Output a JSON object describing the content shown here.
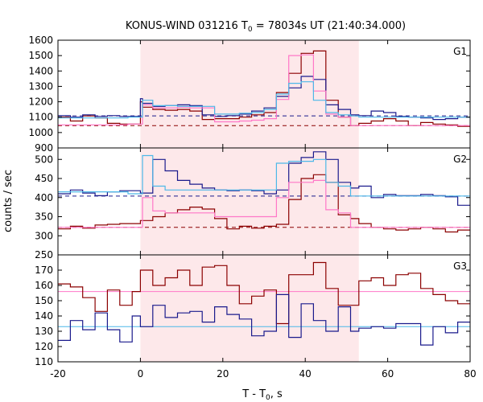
{
  "chart_data": {
    "type": "line",
    "title": "KONUS-WIND 031216 T",
    "title_sub": "0",
    "title_rest": " = 78034s UT (21:40:34.000)",
    "xlabel": "T - T",
    "xlabel_sub": "0",
    "xlabel_rest": ", s",
    "ylabel": "counts / sec",
    "xlim": [
      -20,
      80
    ],
    "x_ticks": [
      -20,
      0,
      20,
      40,
      60,
      80
    ],
    "highlight_interval": [
      0,
      53
    ],
    "colors": {
      "highlight": "#fde8ea",
      "dark_red": "#8b0000",
      "dark_blue": "#1a1a8c",
      "pink": "#ff77c8",
      "cyan": "#4db8e8"
    },
    "panels": [
      {
        "name": "G1",
        "ylim": [
          900,
          1600
        ],
        "y_ticks": [
          900,
          1000,
          1100,
          1200,
          1300,
          1400,
          1500,
          1600
        ],
        "background_levels": [
          {
            "color": "dark_blue",
            "value": 1108
          },
          {
            "color": "dark_red",
            "value": 1045
          }
        ],
        "steps": [
          {
            "color": "dark_red",
            "bin_edges": [
              -20,
              -17,
              -14,
              -11,
              -8,
              -5,
              0,
              0.5,
              3,
              6,
              9,
              12,
              15,
              18,
              21,
              24,
              27,
              30,
              33,
              36,
              39,
              42,
              45,
              48,
              51,
              53,
              56,
              59,
              62,
              65,
              68,
              71,
              74,
              77,
              80
            ],
            "values": [
              1100,
              1075,
              1108,
              1095,
              1060,
              1055,
              1200,
              1165,
              1150,
              1145,
              1150,
              1140,
              1085,
              1090,
              1090,
              1100,
              1115,
              1130,
              1260,
              1385,
              1515,
              1530,
              1210,
              1100,
              1045,
              1060,
              1075,
              1090,
              1075,
              1045,
              1065,
              1055,
              1050,
              1040
            ]
          },
          {
            "color": "dark_blue",
            "bin_edges": [
              -20,
              -17,
              -14,
              -11,
              -8,
              -5,
              0,
              0.5,
              3,
              6,
              9,
              12,
              15,
              18,
              21,
              24,
              27,
              30,
              33,
              36,
              39,
              42,
              45,
              48,
              51,
              53,
              56,
              59,
              62,
              65,
              68,
              71,
              74,
              77,
              80
            ],
            "values": [
              1110,
              1100,
              1115,
              1105,
              1110,
              1105,
              1220,
              1190,
              1170,
              1175,
              1180,
              1175,
              1115,
              1105,
              1110,
              1120,
              1140,
              1160,
              1235,
              1290,
              1365,
              1345,
              1180,
              1150,
              1115,
              1110,
              1140,
              1130,
              1105,
              1100,
              1095,
              1085,
              1090,
              1100
            ]
          },
          {
            "color": "pink",
            "bin_edges": [
              -20,
              -3,
              0,
              0.5,
              3,
              9,
              12,
              18,
              24,
              27,
              30,
              33,
              36,
              39,
              42,
              45,
              48,
              51,
              53,
              80
            ],
            "values": [
              1050,
              1055,
              1055,
              1180,
              1160,
              1165,
              1160,
              1070,
              1075,
              1080,
              1090,
              1215,
              1500,
              1505,
              1270,
              1120,
              1100,
              1045,
              1045
            ]
          },
          {
            "color": "cyan",
            "bin_edges": [
              -20,
              -3,
              0,
              0.5,
              3,
              9,
              12,
              18,
              24,
              27,
              30,
              33,
              36,
              39,
              42,
              45,
              48,
              51,
              53,
              80
            ],
            "values": [
              1095,
              1100,
              1100,
              1210,
              1175,
              1170,
              1170,
              1120,
              1125,
              1130,
              1150,
              1250,
              1320,
              1330,
              1210,
              1130,
              1115,
              1108,
              1100
            ]
          }
        ]
      },
      {
        "name": "G2",
        "ylim": [
          250,
          530
        ],
        "y_ticks": [
          250,
          300,
          350,
          400,
          450,
          500
        ],
        "background_levels": [
          {
            "color": "dark_blue",
            "value": 404
          },
          {
            "color": "dark_red",
            "value": 322
          }
        ],
        "steps": [
          {
            "color": "dark_red",
            "bin_edges": [
              -20,
              -17,
              -14,
              -11,
              -8,
              -5,
              0,
              3,
              6,
              9,
              12,
              15,
              18,
              21,
              24,
              27,
              30,
              33,
              36,
              39,
              42,
              45,
              48,
              51,
              53,
              56,
              59,
              62,
              65,
              68,
              71,
              74,
              77,
              80
            ],
            "values": [
              318,
              325,
              320,
              328,
              330,
              332,
              340,
              350,
              360,
              368,
              375,
              370,
              345,
              318,
              325,
              320,
              325,
              330,
              395,
              450,
              460,
              440,
              355,
              345,
              332,
              322,
              318,
              315,
              318,
              322,
              318,
              310,
              315
            ],
            "note": "approximate readings"
          },
          {
            "color": "dark_blue",
            "bin_edges": [
              -20,
              -17,
              -14,
              -11,
              -8,
              -5,
              0,
              3,
              6,
              9,
              12,
              15,
              18,
              21,
              24,
              27,
              30,
              33,
              36,
              39,
              42,
              45,
              48,
              51,
              53,
              56,
              59,
              62,
              65,
              68,
              71,
              74,
              77,
              80
            ],
            "values": [
              410,
              420,
              412,
              405,
              415,
              418,
              412,
              500,
              470,
              445,
              435,
              425,
              420,
              418,
              420,
              418,
              410,
              420,
              490,
              505,
              520,
              500,
              440,
              425,
              430,
              400,
              408,
              405,
              405,
              408,
              405,
              402,
              380
            ],
            "note": "approximate readings"
          },
          {
            "color": "pink",
            "bin_edges": [
              -20,
              -3,
              0,
              0.5,
              3,
              6,
              15,
              18,
              30,
              33,
              36,
              42,
              45,
              48,
              51,
              53,
              80
            ],
            "values": [
              322,
              322,
              322,
              400,
              365,
              360,
              360,
              350,
              350,
              400,
              440,
              445,
              368,
              360,
              322,
              322
            ],
            "note": "approximate readings"
          },
          {
            "color": "cyan",
            "bin_edges": [
              -20,
              -3,
              0,
              0.5,
              3,
              6,
              15,
              18,
              30,
              33,
              36,
              42,
              45,
              48,
              51,
              53,
              80
            ],
            "values": [
              415,
              410,
              410,
              510,
              430,
              420,
              420,
              420,
              420,
              490,
              495,
              500,
              440,
              430,
              404,
              404
            ],
            "note": "approximate readings"
          }
        ]
      },
      {
        "name": "G3",
        "ylim": [
          110,
          180
        ],
        "y_ticks": [
          110,
          120,
          130,
          140,
          150,
          160,
          170
        ],
        "background_levels": [
          {
            "color": "pink",
            "value": 156
          },
          {
            "color": "cyan",
            "value": 133
          }
        ],
        "steps": [
          {
            "color": "dark_red",
            "bin_edges": [
              -20,
              -17,
              -14,
              -11,
              -8,
              -5,
              -2,
              0,
              3,
              6,
              9,
              12,
              15,
              18,
              21,
              24,
              27,
              30,
              33,
              36,
              39,
              42,
              45,
              48,
              51,
              53,
              56,
              59,
              62,
              65,
              68,
              71,
              74,
              77,
              80
            ],
            "values": [
              161,
              159,
              152,
              143,
              157,
              147,
              156,
              170,
              160,
              165,
              170,
              160,
              172,
              173,
              160,
              148,
              153,
              157,
              135,
              167,
              167,
              175,
              158,
              147,
              147,
              163,
              165,
              160,
              167,
              168,
              158,
              154,
              150,
              148
            ],
            "note": "approximate readings"
          },
          {
            "color": "dark_blue",
            "bin_edges": [
              -20,
              -17,
              -14,
              -11,
              -8,
              -5,
              -2,
              0,
              3,
              6,
              9,
              12,
              15,
              18,
              21,
              24,
              27,
              30,
              33,
              36,
              39,
              42,
              45,
              48,
              51,
              53,
              56,
              59,
              62,
              65,
              68,
              71,
              74,
              77,
              80
            ],
            "values": [
              124,
              137,
              131,
              142,
              131,
              123,
              140,
              133,
              147,
              139,
              142,
              143,
              136,
              146,
              141,
              138,
              127,
              130,
              154,
              126,
              148,
              137,
              130,
              146,
              130,
              132,
              133,
              132,
              135,
              135,
              121,
              133,
              129,
              136
            ],
            "note": "approximate readings"
          }
        ]
      }
    ]
  }
}
